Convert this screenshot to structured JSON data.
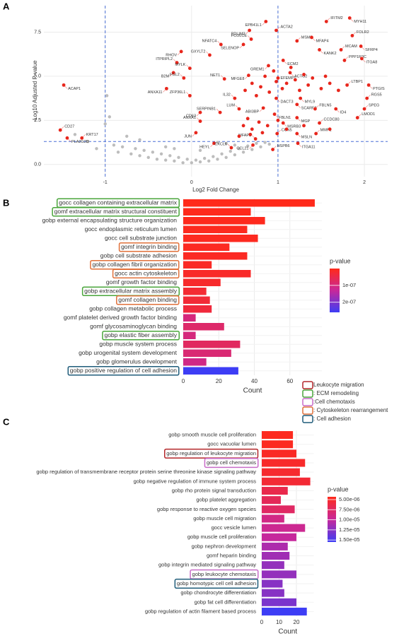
{
  "highlight_groups": [
    {
      "label": "Leukocyte migration",
      "color": "#b3262a"
    },
    {
      "label": ": ECM remodeling",
      "color": "#4aa53b"
    },
    {
      "label": ":Cell chemotaxis",
      "color": "#c86bc8"
    },
    {
      "label": ": Cytoskeleton rearrangement",
      "color": "#e0703a"
    },
    {
      "label": ": Cell adhesion",
      "color": "#1f5c7a"
    }
  ],
  "chart_data": [
    {
      "type": "scatter",
      "panel": "A",
      "xlabel": "Log2 Fold Change",
      "ylabel": "-Log10 Adjusted P-value",
      "xlim": [
        -1.71,
        2.27
      ],
      "ylim": [
        -0.69,
        9.0
      ],
      "xticks": [
        -1,
        0,
        1,
        2
      ],
      "yticks": [
        {
          "value": 0,
          "label": "0.0"
        },
        {
          "value": 2.5,
          "label": "2.5"
        },
        {
          "value": 5,
          "label": "5.0"
        },
        {
          "value": 7.5,
          "label": "7.5"
        }
      ],
      "grid": true,
      "thresholds": {
        "x": [
          -1,
          1
        ],
        "y": 1.3,
        "color": "#4a6fd6"
      },
      "background": {
        "color": "#bdbdbd",
        "x": [
          -1.35,
          -1.2,
          -1.1,
          -0.95,
          -0.9,
          -0.85,
          -0.8,
          -0.7,
          -0.65,
          -0.6,
          -0.55,
          -0.5,
          -0.45,
          -0.4,
          -0.35,
          -0.3,
          -0.25,
          -0.2,
          -0.15,
          -0.1,
          -0.05,
          0.0,
          0.05,
          0.1,
          0.15,
          0.2,
          0.25,
          0.3,
          0.35,
          0.4,
          0.45,
          0.5,
          0.55,
          0.6,
          0.65,
          0.7,
          0.75,
          0.8,
          0.85,
          0.9,
          -0.98,
          -1.0,
          -0.6,
          -0.3,
          0.1,
          0.4,
          -0.75,
          -0.2,
          0.3,
          0.5
        ],
        "y": [
          1.7,
          1.3,
          0.9,
          2.7,
          1.1,
          0.7,
          1.0,
          0.6,
          0.9,
          0.5,
          0.8,
          0.4,
          0.7,
          0.3,
          0.6,
          0.25,
          0.5,
          0.2,
          0.4,
          0.1,
          0.3,
          0.1,
          0.25,
          0.15,
          0.35,
          0.2,
          0.45,
          0.3,
          0.6,
          0.4,
          0.75,
          0.55,
          0.9,
          0.7,
          1.05,
          0.85,
          1.2,
          1.0,
          1.25,
          1.15,
          3.9,
          2.3,
          1.4,
          1.0,
          0.8,
          1.2,
          1.6,
          0.9,
          1.25,
          1.1
        ]
      },
      "significant": {
        "color": "#e8261c",
        "labels": [
          "EPB41L1",
          "IFITM2",
          "MYH11",
          "ACTA2",
          "PDLIM3",
          "MSMB",
          "MFAP4",
          "FOLR2",
          "SFRP4",
          "PCOLCE",
          "SELENOP",
          "NFATC4",
          "KANK2",
          "MCAM",
          "RHOV",
          "GXYLT2",
          "ECM2",
          "PPP1R3C",
          "ITGA8",
          "ITPRIPL2",
          "GREM1",
          "MYLK",
          "B2M",
          "NET1",
          "MFGE8",
          "EFEMP1",
          "ACTG2",
          "FGL2",
          "ANXA11",
          "LTBP1",
          "PTGIS",
          "ZFP36L1",
          "DACT3",
          "IL32",
          "MYL9",
          "RGS5",
          "SCARF2",
          "FBLN5",
          "ID4",
          "SPEG",
          "ABI3BP",
          "LUM",
          "MGP",
          "LMOD1",
          "CD63",
          "SERPINB1",
          "FBLN1",
          "ANXA1",
          "MSRB3",
          "CCDC80",
          "JUN",
          "CCN5",
          "MSLN",
          "MMP1",
          "HEYL",
          "MFAP2",
          "CCL21",
          "CXCL6",
          "ITGA11",
          "HSPB6",
          "ACAP1",
          "CD27",
          "PLA2G2D",
          "KRT17",
          null,
          null,
          null,
          null,
          null,
          null,
          null,
          null,
          null,
          null,
          null,
          null,
          null,
          null,
          null,
          null,
          null,
          null,
          null,
          null,
          null,
          null,
          null,
          null,
          null,
          null,
          null,
          null,
          null,
          null,
          null,
          null
        ],
        "x": [
          0.86,
          1.56,
          1.83,
          0.98,
          0.67,
          1.22,
          1.39,
          1.86,
          1.96,
          0.69,
          0.6,
          0.34,
          1.48,
          1.73,
          -0.12,
          0.21,
          1.06,
          1.77,
          1.97,
          -0.17,
          0.89,
          -0.02,
          -0.21,
          0.38,
          0.66,
          0.98,
          1.14,
          -0.09,
          -0.29,
          1.8,
          2.05,
          -0.02,
          0.98,
          0.5,
          1.26,
          2.03,
          1.22,
          1.43,
          1.67,
          2.0,
          0.83,
          0.55,
          1.22,
          1.92,
          0.1,
          0.33,
          0.96,
          0.1,
          1.06,
          1.48,
          0.05,
          0.99,
          1.22,
          1.44,
          0.26,
          0.74,
          0.71,
          0.46,
          1.23,
          0.94,
          -1.48,
          -1.52,
          -1.44,
          -1.27,
          0.62,
          0.7,
          0.75,
          0.8,
          0.85,
          0.9,
          0.95,
          1.0,
          1.05,
          1.1,
          1.15,
          1.2,
          1.25,
          1.3,
          1.35,
          1.4,
          1.5,
          1.55,
          1.6,
          1.7,
          0.6,
          0.65,
          0.7,
          0.78,
          0.82,
          0.88,
          1.0,
          1.1,
          1.3,
          1.6,
          0.55,
          0.68
        ],
        "y": [
          8.1,
          8.1,
          8.3,
          7.6,
          7.6,
          7.0,
          7.2,
          7.3,
          6.7,
          7.1,
          6.8,
          6.8,
          6.5,
          6.5,
          6.4,
          6.2,
          5.9,
          5.9,
          6.0,
          5.77,
          5.6,
          5.45,
          5.2,
          4.85,
          5.05,
          4.7,
          5.2,
          4.9,
          4.3,
          4.5,
          4.5,
          3.9,
          3.75,
          3.75,
          3.75,
          3.75,
          3.4,
          3.15,
          3.15,
          3.15,
          3.2,
          3.15,
          2.65,
          2.65,
          2.95,
          2.95,
          2.85,
          2.45,
          2.35,
          2.35,
          1.8,
          1.75,
          1.75,
          1.75,
          1.2,
          1.45,
          1.1,
          0.95,
          1.2,
          0.85,
          4.5,
          1.95,
          1.5,
          1.5,
          4.2,
          4.6,
          3.9,
          4.4,
          5.0,
          4.1,
          5.3,
          4.9,
          4.3,
          4.6,
          5.5,
          4.8,
          4.2,
          5.1,
          4.5,
          4.9,
          4.3,
          5.0,
          4.6,
          4.2,
          2.2,
          2.6,
          2.0,
          2.4,
          1.8,
          2.2,
          2.5,
          2.0,
          2.2,
          2.0,
          1.6,
          1.7
        ]
      }
    },
    {
      "type": "bar",
      "panel": "B",
      "orientation": "horizontal",
      "xlabel": "Count",
      "xlim": [
        0,
        78
      ],
      "xticks": [
        0,
        20,
        40,
        60
      ],
      "grid": true,
      "categories": [
        "gocc collagen containing extracellular matrix",
        "gomf extracellular matrix structural constituent",
        "gobp external encapsulating structure organization",
        "gocc endoplasmic reticulum lumen",
        "gocc cell substrate junction",
        "gomf integrin binding",
        "gobp cell substrate adhesion",
        "gobp collagen fibril organization",
        "gocc actin cytoskeleton",
        "gomf growth factor binding",
        "gobp extracellular matrix assembly",
        "gomf collagen binding",
        "gobp collagen metabolic process",
        "gomf platelet derived growth factor binding",
        "gomf glycosaminoglycan binding",
        "gobp elastic fiber assembly",
        "gobp muscle system process",
        "gobp urogenital system development",
        "gobp glomerulus development",
        "gobp positive regulation of cell adhesion"
      ],
      "values": [
        74,
        38,
        46,
        36,
        42,
        26,
        36,
        16,
        38,
        21,
        13,
        15,
        16,
        7,
        23,
        7,
        32,
        27,
        13,
        31
      ],
      "p_values": [
        1e-10,
        2e-09,
        3e-09,
        5e-09,
        6e-09,
        8e-09,
        1e-08,
        1.2e-08,
        1.5e-08,
        1.8e-08,
        2.5e-08,
        3e-08,
        3.5e-08,
        1e-07,
        8e-08,
        1e-07,
        7e-08,
        9e-08,
        1.1e-07,
        2.6e-07
      ],
      "highlight": [
        1,
        1,
        null,
        null,
        null,
        3,
        null,
        3,
        3,
        null,
        1,
        3,
        null,
        null,
        null,
        1,
        null,
        null,
        null,
        4
      ],
      "color_scale": {
        "title": "p-value",
        "colors": [
          "#ff2a1a",
          "#c8289a",
          "#3d3df5"
        ],
        "lim": [
          1e-10,
          2.6e-07
        ],
        "ticks": [
          {
            "value": 1e-07,
            "label": "1e-07"
          },
          {
            "value": 2e-07,
            "label": "2e-07"
          }
        ]
      }
    },
    {
      "type": "bar",
      "panel": "C",
      "orientation": "horizontal",
      "xlabel": "Count",
      "xlim": [
        0,
        30
      ],
      "xticks": [
        0,
        10,
        20
      ],
      "grid": true,
      "categories": [
        "gobp smooth muscle cell proliferation",
        "gocc vacuolar lumen",
        "gobp regulation of leukocyte migration",
        "gobp cell chemotaxis",
        "gobp regulation of transmembrane receptor protein serine threonine kinase signaling pathway",
        "gobp negative regulation of immune system process",
        "gobp rho protein signal transduction",
        "gobp platelet aggregation",
        "gobp response to reactive oxygen species",
        "gobp muscle cell migration",
        "gocc vesicle lumen",
        "gobp muscle cell proliferation",
        "gobp nephron development",
        "gomf heparin binding",
        "gobp integrin mediated signaling pathway",
        "gobp leukocyte chemotaxis",
        "gobp homotypic cell cell adhesion",
        "gobp chondrocyte differentiation",
        "gobp fat cell differentiation",
        "gobp regulation of actin filament based process"
      ],
      "values": [
        18,
        18,
        20,
        25,
        22,
        28,
        15,
        11,
        19,
        13,
        25,
        20,
        15,
        16,
        13,
        20,
        12,
        13,
        20,
        26
      ],
      "p_values": [
        4.5e-06,
        4.6e-06,
        4.8e-06,
        5e-06,
        5.2e-06,
        5.5e-06,
        6.5e-06,
        7e-06,
        7.5e-06,
        9e-06,
        9.5e-06,
        1e-05,
        1.1e-05,
        1.15e-05,
        1.2e-05,
        1.2e-05,
        1.25e-05,
        1.25e-05,
        1.3e-05,
        1.55e-05
      ],
      "highlight": [
        null,
        null,
        0,
        2,
        null,
        null,
        null,
        null,
        null,
        null,
        null,
        null,
        null,
        null,
        null,
        2,
        4,
        null,
        null,
        null
      ],
      "color_scale": {
        "title": "p-value",
        "colors": [
          "#ff2a1a",
          "#c8289a",
          "#3d3df5"
        ],
        "lim": [
          4.3e-06,
          1.55e-05
        ],
        "ticks": [
          {
            "value": 5e-06,
            "label": "5.00e-06"
          },
          {
            "value": 7.5e-06,
            "label": "7.50e-06"
          },
          {
            "value": 1e-05,
            "label": "1.00e-05"
          },
          {
            "value": 1.25e-05,
            "label": "1.25e-05"
          },
          {
            "value": 1.5e-05,
            "label": "1.50e-05"
          }
        ]
      }
    }
  ]
}
